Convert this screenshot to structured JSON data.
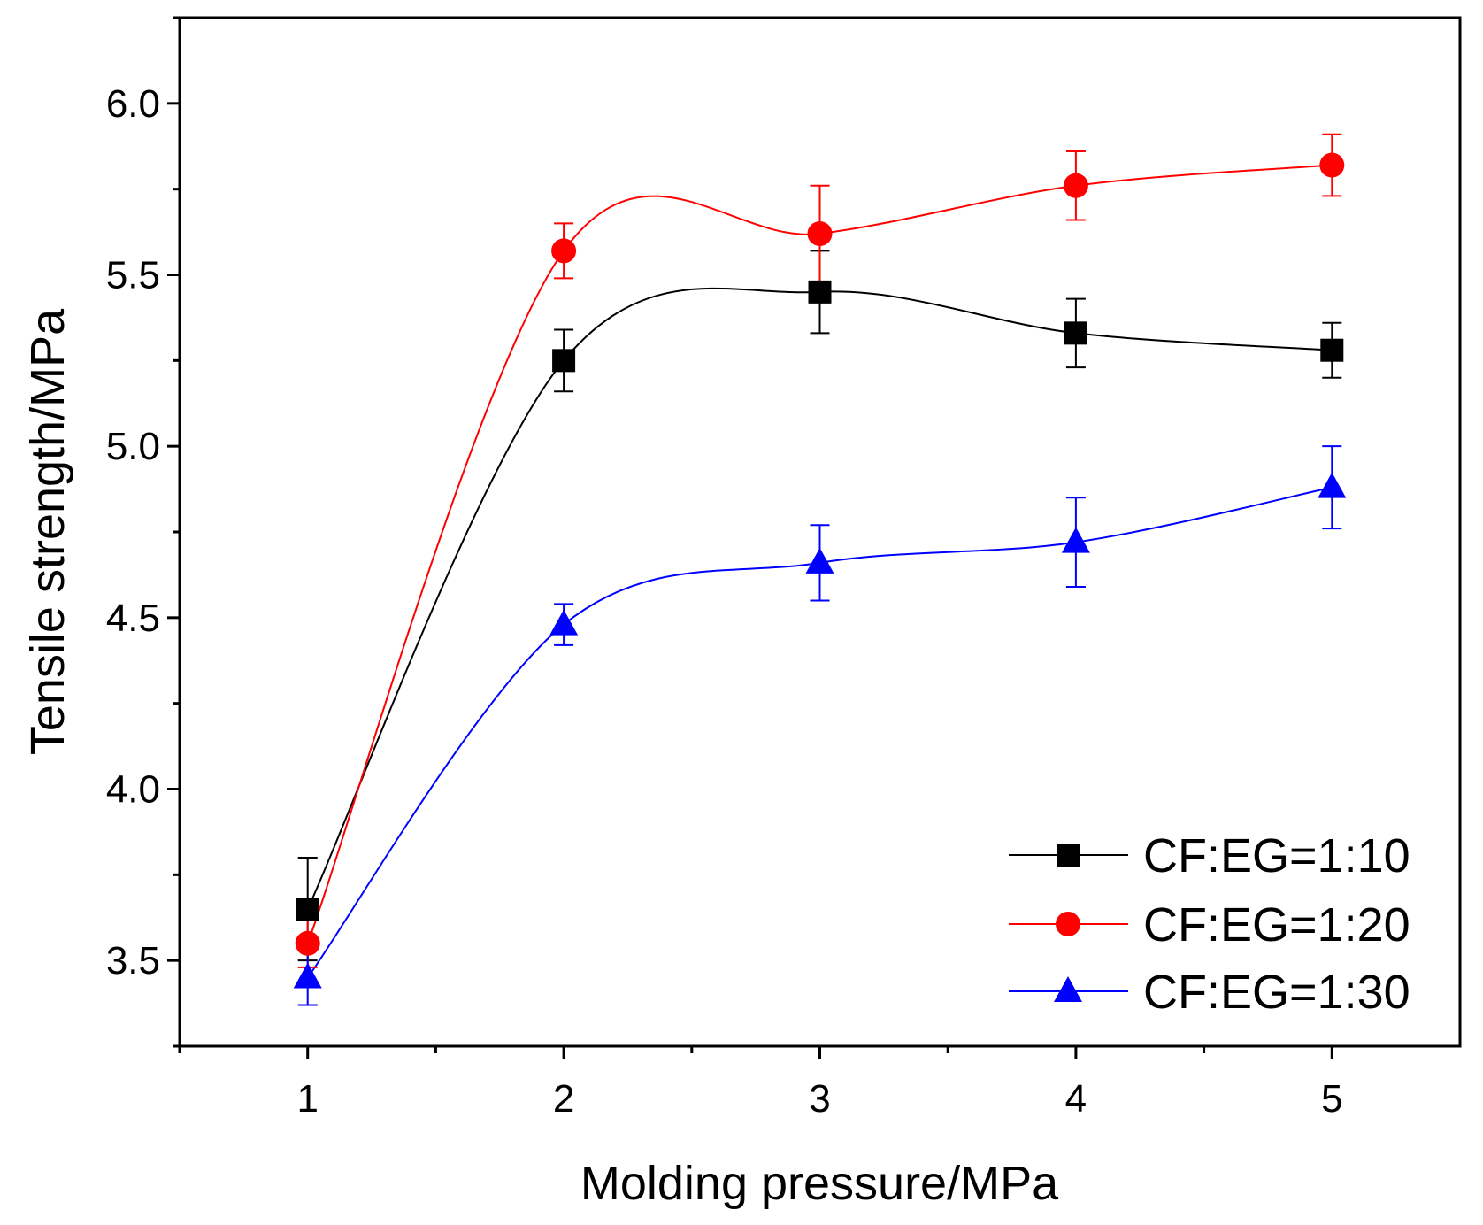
{
  "chart_data": {
    "type": "line",
    "title": "",
    "xlabel": "Molding pressure/MPa",
    "ylabel": "Tensile strength/MPa",
    "xlim": [
      0.5,
      5.5
    ],
    "ylim": [
      3.25,
      6.25
    ],
    "x": [
      1,
      2,
      3,
      4,
      5
    ],
    "x_ticks": [
      1,
      2,
      3,
      4,
      5
    ],
    "x_tick_labels": [
      "1",
      "2",
      "3",
      "4",
      "5"
    ],
    "y_ticks": [
      3.5,
      4.0,
      4.5,
      5.0,
      5.5,
      6.0
    ],
    "y_tick_labels": [
      "3.5",
      "4.0",
      "4.5",
      "5.0",
      "5.5",
      "6.0"
    ],
    "grid": false,
    "legend_position": "bottom-right",
    "series": [
      {
        "name": "CF:EG=1:10",
        "color": "#000000",
        "marker": "square",
        "values": [
          3.65,
          5.25,
          5.45,
          5.33,
          5.28
        ],
        "errors": [
          0.15,
          0.09,
          0.12,
          0.1,
          0.08
        ]
      },
      {
        "name": "CF:EG=1:20",
        "color": "#ff0000",
        "marker": "circle",
        "values": [
          3.55,
          5.57,
          5.62,
          5.76,
          5.82
        ],
        "errors": [
          0.07,
          0.08,
          0.14,
          0.1,
          0.09
        ]
      },
      {
        "name": "CF:EG=1:30",
        "color": "#0000ff",
        "marker": "triangle",
        "values": [
          3.45,
          4.48,
          4.66,
          4.72,
          4.88
        ],
        "errors": [
          0.08,
          0.06,
          0.11,
          0.13,
          0.12
        ]
      }
    ]
  }
}
